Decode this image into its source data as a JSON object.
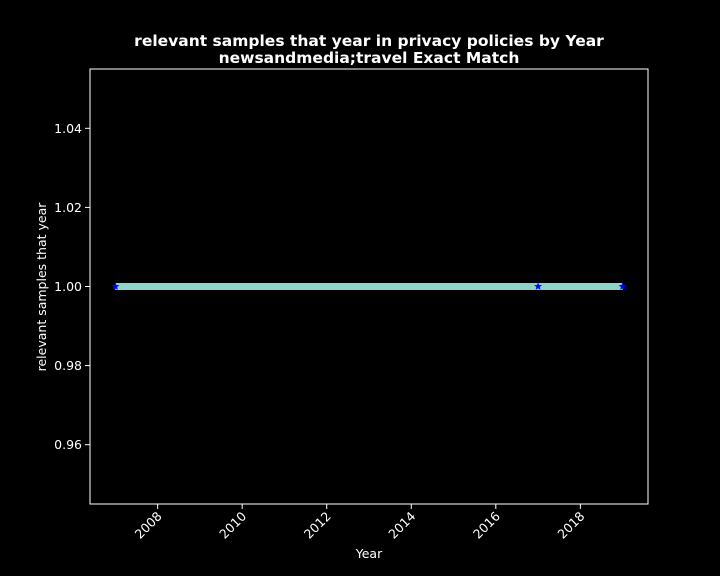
{
  "chart_data": {
    "type": "line",
    "title": "relevant samples that year in privacy policies by Year",
    "subtitle": "newsandmedia;travel Exact Match",
    "xlabel": "Year",
    "ylabel": "relevant samples that year",
    "xlim": [
      2006.4,
      2019.6
    ],
    "ylim": [
      0.945,
      1.055
    ],
    "x_ticks": [
      2008,
      2010,
      2012,
      2014,
      2016,
      2018
    ],
    "y_ticks": [
      0.96,
      0.98,
      1.0,
      1.02,
      1.04
    ],
    "y_tick_labels": [
      "0.96",
      "0.98",
      "1.00",
      "1.02",
      "1.04"
    ],
    "grid": false,
    "series": [
      {
        "x": [
          2007,
          2017,
          2019
        ],
        "y": [
          1,
          1,
          1
        ],
        "line_color": "#8dd3c7",
        "marker": "star",
        "marker_color": "#0000ff"
      }
    ],
    "background": "#000000",
    "foreground": "#ffffff"
  }
}
